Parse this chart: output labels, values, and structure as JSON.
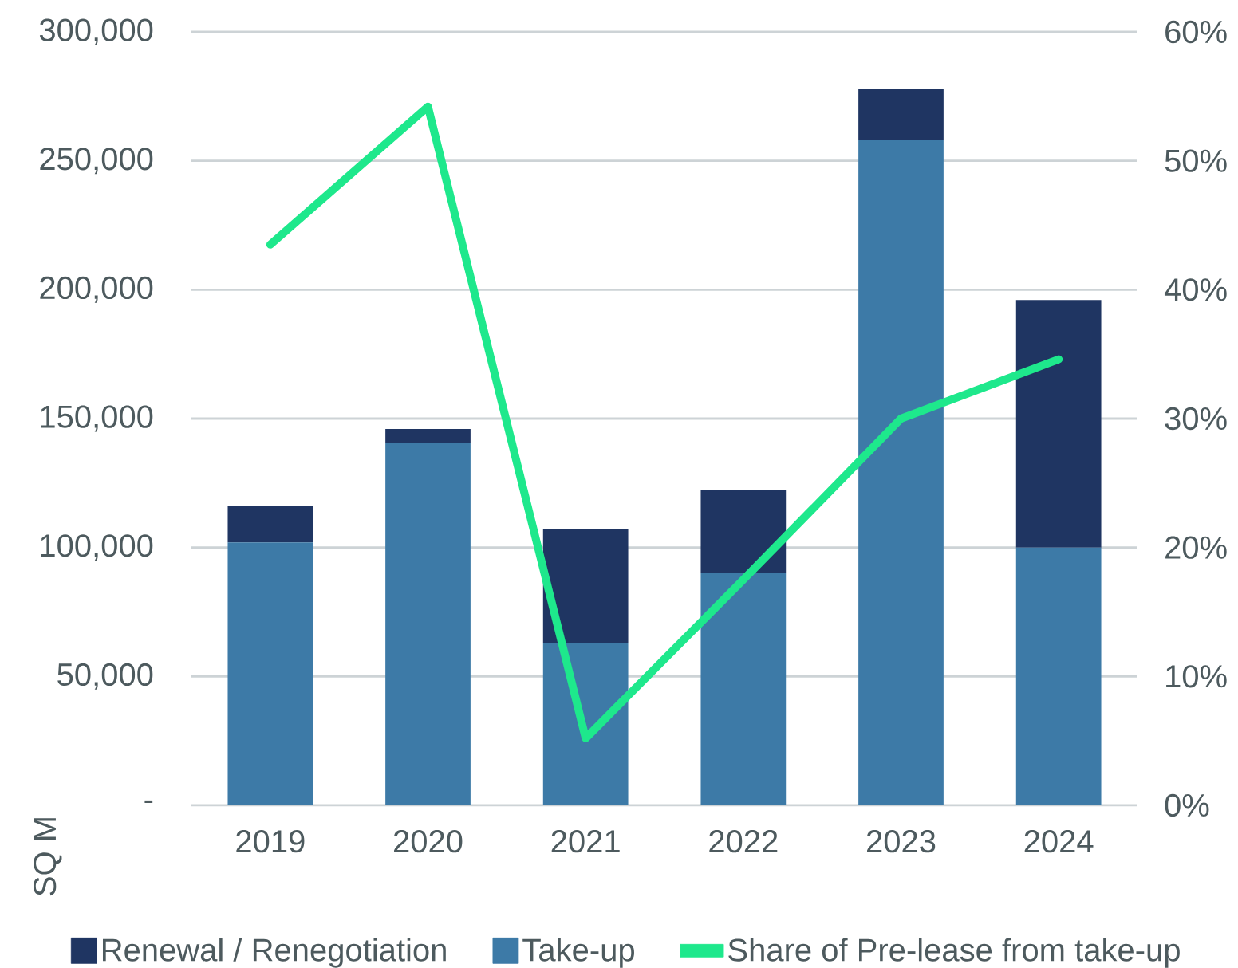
{
  "chart_data": {
    "type": "bar",
    "stacked": true,
    "ylabel": "SQ M",
    "categories": [
      "2019",
      "2020",
      "2021",
      "2022",
      "2023",
      "2024"
    ],
    "series": [
      {
        "name": "Take-up",
        "color": "#3d7aa7",
        "values": [
          102000,
          140500,
          63000,
          90000,
          258000,
          100000
        ]
      },
      {
        "name": "Renewal / Renegotiation",
        "color": "#1f3562",
        "values": [
          14000,
          5500,
          44000,
          32500,
          20000,
          96000
        ]
      },
      {
        "name": "Share of Pre-lease from take-up",
        "type": "line",
        "axis": "y2",
        "color": "#1ee88c",
        "values": [
          43.5,
          54.2,
          5.2,
          17.5,
          30,
          34.6
        ]
      }
    ],
    "ylim": [
      0,
      300000
    ],
    "yticks": [
      {
        "value": 0,
        "label": "-"
      },
      {
        "value": 50000,
        "label": "50,000"
      },
      {
        "value": 100000,
        "label": "100,000"
      },
      {
        "value": 150000,
        "label": "150,000"
      },
      {
        "value": 200000,
        "label": "200,000"
      },
      {
        "value": 250000,
        "label": "250,000"
      },
      {
        "value": 300000,
        "label": "300,000"
      }
    ],
    "y2lim": [
      0,
      60
    ],
    "y2ticks": [
      {
        "value": 0,
        "label": "0%"
      },
      {
        "value": 10,
        "label": "10%"
      },
      {
        "value": 20,
        "label": "20%"
      },
      {
        "value": 30,
        "label": "30%"
      },
      {
        "value": 40,
        "label": "40%"
      },
      {
        "value": 50,
        "label": "50%"
      },
      {
        "value": 60,
        "label": "60%"
      }
    ],
    "grid": "y",
    "legend": "bottom"
  }
}
